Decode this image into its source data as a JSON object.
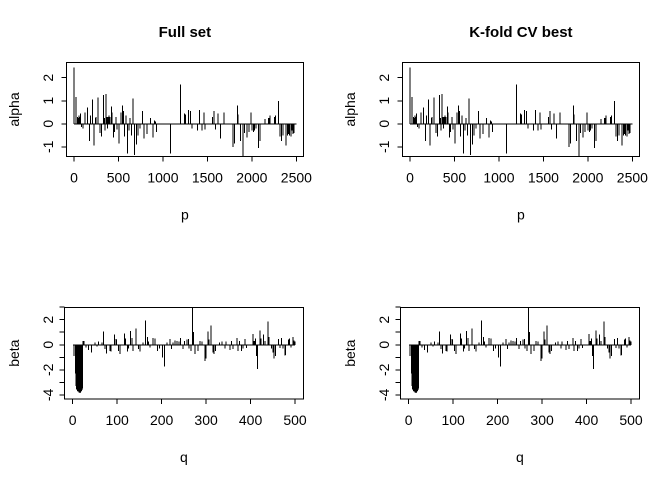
{
  "figure": {
    "background": "#ffffff",
    "foreground": "#000000"
  },
  "chart_data": {
    "type": "bar",
    "subtype": "vertical spike plot (R type='h'), 2x2 panel grid",
    "grid": false,
    "legend": null,
    "titles": {
      "left_column": "Full set",
      "right_column": "K-fold CV best"
    },
    "series": {
      "alpha": {
        "x_range": [
          1,
          2500
        ],
        "points": [
          [
            3,
            2.45
          ],
          [
            23,
            1.17
          ],
          [
            38,
            0.3
          ],
          [
            45,
            0.25
          ],
          [
            55,
            0.35
          ],
          [
            65,
            0.3
          ],
          [
            75,
            0.45
          ],
          [
            85,
            -0.15
          ],
          [
            102,
            -0.2
          ],
          [
            124,
            0.5
          ],
          [
            150,
            0.7
          ],
          [
            173,
            -0.75
          ],
          [
            188,
            0.35
          ],
          [
            211,
            1.05
          ],
          [
            226,
            -0.95
          ],
          [
            240,
            0.25
          ],
          [
            248,
            0.3
          ],
          [
            271,
            1.15
          ],
          [
            290,
            -0.4
          ],
          [
            309,
            -0.55
          ],
          [
            331,
            1.25
          ],
          [
            343,
            0.25
          ],
          [
            347,
            -0.3
          ],
          [
            361,
            1.3
          ],
          [
            370,
            0.3
          ],
          [
            376,
            -0.2
          ],
          [
            385,
            0.3
          ],
          [
            395,
            0.35
          ],
          [
            405,
            0.3
          ],
          [
            421,
            0.75
          ],
          [
            430,
            0.5
          ],
          [
            444,
            -0.6
          ],
          [
            455,
            -0.35
          ],
          [
            470,
            0.3
          ],
          [
            485,
            -0.25
          ],
          [
            508,
            -0.85
          ],
          [
            528,
            0.5
          ],
          [
            547,
            0.8
          ],
          [
            557,
            0.55
          ],
          [
            570,
            -0.55
          ],
          [
            585,
            0.35
          ],
          [
            600,
            -1.3
          ],
          [
            620,
            -0.3
          ],
          [
            632,
            0.25
          ],
          [
            645,
            -0.5
          ],
          [
            663,
            1.1
          ],
          [
            680,
            -1.35
          ],
          [
            701,
            -0.9
          ],
          [
            720,
            -0.5
          ],
          [
            740,
            -0.2
          ],
          [
            772,
            0.55
          ],
          [
            790,
            -0.65
          ],
          [
            822,
            -0.45
          ],
          [
            860,
            0.25
          ],
          [
            890,
            -0.6
          ],
          [
            905,
            0.15
          ],
          [
            918,
            0.1
          ],
          [
            928,
            -0.35
          ],
          [
            1085,
            -1.3
          ],
          [
            1195,
            1.7
          ],
          [
            1240,
            0.45
          ],
          [
            1253,
            0.4
          ],
          [
            1290,
            0.6
          ],
          [
            1310,
            0.55
          ],
          [
            1325,
            -0.2
          ],
          [
            1390,
            -0.3
          ],
          [
            1411,
            0.6
          ],
          [
            1440,
            -0.3
          ],
          [
            1462,
            0.5
          ],
          [
            1472,
            -0.25
          ],
          [
            1560,
            0.3
          ],
          [
            1573,
            0.55
          ],
          [
            1590,
            -0.25
          ],
          [
            1620,
            0.45
          ],
          [
            1648,
            -0.65
          ],
          [
            1686,
            0.5
          ],
          [
            1788,
            -1.0
          ],
          [
            1805,
            -0.85
          ],
          [
            1837,
            0.8
          ],
          [
            1845,
            0.4
          ],
          [
            1874,
            -0.75
          ],
          [
            1898,
            -1.42
          ],
          [
            1917,
            -0.4
          ],
          [
            1943,
            -0.6
          ],
          [
            1969,
            -0.35
          ],
          [
            1991,
            0.5
          ],
          [
            2004,
            -0.3
          ],
          [
            2017,
            -0.35
          ],
          [
            2030,
            -0.3
          ],
          [
            2045,
            -0.2
          ],
          [
            2073,
            -1.05
          ],
          [
            2092,
            -0.75
          ],
          [
            2150,
            0.2
          ],
          [
            2185,
            0.25
          ],
          [
            2195,
            0.25
          ],
          [
            2205,
            0.35
          ],
          [
            2255,
            0.3
          ],
          [
            2265,
            0.35
          ],
          [
            2299,
            1.0
          ],
          [
            2317,
            -0.55
          ],
          [
            2332,
            -0.75
          ],
          [
            2347,
            -0.5
          ],
          [
            2385,
            -0.95
          ],
          [
            2400,
            -0.5
          ],
          [
            2412,
            -0.45
          ],
          [
            2425,
            -0.5
          ],
          [
            2437,
            -0.55
          ],
          [
            2450,
            -0.3
          ],
          [
            2465,
            -0.45
          ],
          [
            2475,
            -0.4
          ]
        ]
      },
      "beta": {
        "x_range": [
          1,
          500
        ],
        "points": [
          [
            3,
            -0.9
          ],
          [
            6,
            -2.3
          ],
          [
            7,
            -2.9
          ],
          [
            8,
            -3.3
          ],
          [
            9,
            -3.55
          ],
          [
            10,
            -3.6
          ],
          [
            11,
            -3.7
          ],
          [
            12,
            -3.75
          ],
          [
            13,
            -3.65
          ],
          [
            14,
            -3.8
          ],
          [
            15,
            -3.75
          ],
          [
            16,
            -3.85
          ],
          [
            17,
            -3.7
          ],
          [
            18,
            -3.8
          ],
          [
            19,
            -3.75
          ],
          [
            20,
            -3.7
          ],
          [
            21,
            -3.6
          ],
          [
            22,
            -3.5
          ],
          [
            23,
            0.3
          ],
          [
            26,
            0.3
          ],
          [
            30,
            -0.2
          ],
          [
            36,
            -0.4
          ],
          [
            42,
            -0.6
          ],
          [
            50,
            0.2
          ],
          [
            55,
            -0.15
          ],
          [
            58,
            0.25
          ],
          [
            66,
            0.2
          ],
          [
            69,
            1.05
          ],
          [
            73,
            -0.35
          ],
          [
            76,
            -0.7
          ],
          [
            84,
            -0.5
          ],
          [
            86,
            -0.55
          ],
          [
            94,
            0.8
          ],
          [
            97,
            0.45
          ],
          [
            99,
            0.4
          ],
          [
            103,
            -0.5
          ],
          [
            106,
            -0.75
          ],
          [
            116,
            0.9
          ],
          [
            119,
            0.5
          ],
          [
            123,
            -0.55
          ],
          [
            126,
            -0.3
          ],
          [
            130,
            1.1
          ],
          [
            133,
            0.55
          ],
          [
            136,
            -0.5
          ],
          [
            142,
            1.3
          ],
          [
            148,
            -0.35
          ],
          [
            151,
            -0.55
          ],
          [
            158,
            0.2
          ],
          [
            164,
            1.95
          ],
          [
            168,
            0.6
          ],
          [
            171,
            0.25
          ],
          [
            174,
            -0.2
          ],
          [
            181,
            0.55
          ],
          [
            185,
            0.5
          ],
          [
            191,
            -0.5
          ],
          [
            195,
            -0.3
          ],
          [
            202,
            -1.0
          ],
          [
            206,
            -1.75
          ],
          [
            212,
            0.2
          ],
          [
            219,
            0.45
          ],
          [
            222,
            -0.35
          ],
          [
            226,
            0.2
          ],
          [
            230,
            0.35
          ],
          [
            235,
            0.3
          ],
          [
            239,
            0.25
          ],
          [
            243,
            0.55
          ],
          [
            248,
            -0.35
          ],
          [
            252,
            0.3
          ],
          [
            257,
            0.4
          ],
          [
            260,
            0.45
          ],
          [
            262,
            -0.3
          ],
          [
            266,
            -0.5
          ],
          [
            270,
            2.95
          ],
          [
            272,
            1.0
          ],
          [
            275,
            -0.75
          ],
          [
            282,
            -0.5
          ],
          [
            286,
            0.3
          ],
          [
            291,
            0.25
          ],
          [
            297,
            -1.3
          ],
          [
            300,
            -1.1
          ],
          [
            304,
            1.05
          ],
          [
            307,
            0.4
          ],
          [
            311,
            1.55
          ],
          [
            315,
            -0.6
          ],
          [
            318,
            -0.75
          ],
          [
            321,
            -0.5
          ],
          [
            330,
            0.2
          ],
          [
            336,
            0.25
          ],
          [
            342,
            -0.3
          ],
          [
            345,
            0.25
          ],
          [
            354,
            -0.4
          ],
          [
            357,
            0.3
          ],
          [
            360,
            -0.35
          ],
          [
            369,
            0.55
          ],
          [
            372,
            -0.5
          ],
          [
            375,
            0.3
          ],
          [
            380,
            -0.5
          ],
          [
            383,
            -0.3
          ],
          [
            388,
            0.45
          ],
          [
            391,
            -0.25
          ],
          [
            405,
            0.85
          ],
          [
            408,
            0.3
          ],
          [
            409,
            0.3
          ],
          [
            411,
            0.5
          ],
          [
            413,
            -0.9
          ],
          [
            416,
            -1.95
          ],
          [
            421,
            1.15
          ],
          [
            424,
            0.5
          ],
          [
            429,
            0.8
          ],
          [
            432,
            0.3
          ],
          [
            439,
            1.85
          ],
          [
            442,
            0.6
          ],
          [
            447,
            -0.3
          ],
          [
            450,
            -0.6
          ],
          [
            453,
            -1.1
          ],
          [
            456,
            -0.9
          ],
          [
            463,
            0.45
          ],
          [
            466,
            -0.25
          ],
          [
            470,
            0.55
          ],
          [
            473,
            -0.3
          ],
          [
            477,
            -0.85
          ],
          [
            479,
            -0.8
          ],
          [
            485,
            0.4
          ],
          [
            488,
            0.5
          ],
          [
            491,
            -0.2
          ],
          [
            496,
            0.6
          ],
          [
            498,
            0.35
          ],
          [
            500,
            0.25
          ]
        ]
      }
    },
    "panels": [
      {
        "id": "alpha-full-set",
        "row": "top",
        "title": "Full set",
        "xlabel": "p",
        "ylabel": "alpha",
        "series": "alpha",
        "xlim": [
          -84,
          2578
        ],
        "ylim": [
          -1.43,
          2.67
        ],
        "xticks": [
          {
            "v": 0,
            "label": "0"
          },
          {
            "v": 500,
            "label": "500"
          },
          {
            "v": 1000,
            "label": "1000"
          },
          {
            "v": 1500,
            "label": "1500"
          },
          {
            "v": 2000,
            "label": "2000"
          },
          {
            "v": 2500,
            "label": "2500"
          }
        ],
        "yticks": [
          {
            "v": -1,
            "label": "-1"
          },
          {
            "v": 0,
            "label": "0"
          },
          {
            "v": 1,
            "label": "1"
          },
          {
            "v": 2,
            "label": "2"
          }
        ]
      },
      {
        "id": "alpha-kfold-cv",
        "row": "top",
        "title": "K-fold CV best",
        "xlabel": "p",
        "ylabel": "alpha",
        "series": "alpha",
        "xlim": [
          -84,
          2578
        ],
        "ylim": [
          -1.43,
          2.67
        ],
        "xticks": [
          {
            "v": 0,
            "label": "0"
          },
          {
            "v": 500,
            "label": "500"
          },
          {
            "v": 1000,
            "label": "1000"
          },
          {
            "v": 1500,
            "label": "1500"
          },
          {
            "v": 2000,
            "label": "2000"
          },
          {
            "v": 2500,
            "label": "2500"
          }
        ],
        "yticks": [
          {
            "v": -1,
            "label": "-1"
          },
          {
            "v": 0,
            "label": "0"
          },
          {
            "v": 1,
            "label": "1"
          },
          {
            "v": 2,
            "label": "2"
          }
        ]
      },
      {
        "id": "beta-full-set",
        "row": "bottom",
        "title": "",
        "xlabel": "q",
        "ylabel": "beta",
        "series": "beta",
        "xlim": [
          -18.4,
          518.6
        ],
        "ylim": [
          -4.33,
          2.99
        ],
        "xticks": [
          {
            "v": 0,
            "label": "0"
          },
          {
            "v": 100,
            "label": "100"
          },
          {
            "v": 200,
            "label": "200"
          },
          {
            "v": 300,
            "label": "300"
          },
          {
            "v": 400,
            "label": "400"
          },
          {
            "v": 500,
            "label": "500"
          }
        ],
        "yticks": [
          {
            "v": -4,
            "label": "-4"
          },
          {
            "v": -3,
            "label": ""
          },
          {
            "v": -2,
            "label": "-2"
          },
          {
            "v": -1,
            "label": ""
          },
          {
            "v": 0,
            "label": "0"
          },
          {
            "v": 1,
            "label": ""
          },
          {
            "v": 2,
            "label": "2"
          },
          {
            "v": 3,
            "label": ""
          }
        ]
      },
      {
        "id": "beta-kfold-cv",
        "row": "bottom",
        "title": "",
        "xlabel": "q",
        "ylabel": "beta",
        "series": "beta",
        "xlim": [
          -18.4,
          518.6
        ],
        "ylim": [
          -4.33,
          2.99
        ],
        "xticks": [
          {
            "v": 0,
            "label": "0"
          },
          {
            "v": 100,
            "label": "100"
          },
          {
            "v": 200,
            "label": "200"
          },
          {
            "v": 300,
            "label": "300"
          },
          {
            "v": 400,
            "label": "400"
          },
          {
            "v": 500,
            "label": "500"
          }
        ],
        "yticks": [
          {
            "v": -4,
            "label": "-4"
          },
          {
            "v": -3,
            "label": ""
          },
          {
            "v": -2,
            "label": "-2"
          },
          {
            "v": -1,
            "label": ""
          },
          {
            "v": 0,
            "label": "0"
          },
          {
            "v": 1,
            "label": ""
          },
          {
            "v": 2,
            "label": "2"
          },
          {
            "v": 3,
            "label": ""
          }
        ]
      }
    ]
  }
}
